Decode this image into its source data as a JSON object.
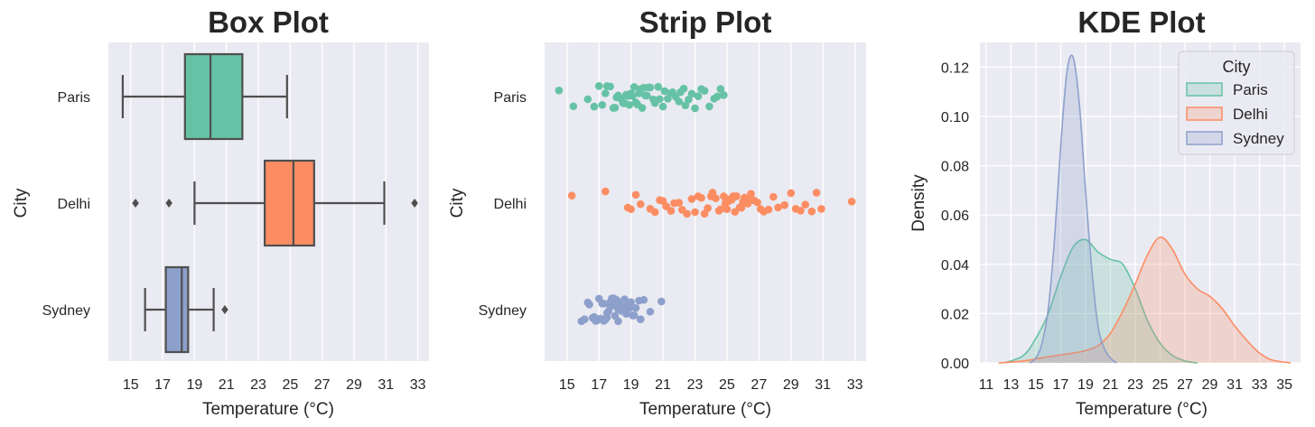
{
  "colors": {
    "panel_bg": "#eaeaf2",
    "grid": "#ffffff",
    "text": "#262626",
    "box_line": "#4f4f4f",
    "Paris": "#66c2a5",
    "Delhi": "#fc8d62",
    "Sydney": "#8da0cb"
  },
  "chart_data": [
    {
      "type": "box",
      "title": "Box Plot",
      "xlabel": "Temperature (°C)",
      "ylabel": "City",
      "xlim": [
        13.6,
        33.7
      ],
      "xticks": [
        15,
        17,
        19,
        21,
        23,
        25,
        27,
        29,
        31,
        33
      ],
      "grid": true,
      "categories": [
        "Paris",
        "Delhi",
        "Sydney"
      ],
      "series": [
        {
          "name": "Paris",
          "whisker_low": 14.5,
          "q1": 18.4,
          "median": 20.0,
          "q3": 22.0,
          "whisker_high": 24.8,
          "outliers": []
        },
        {
          "name": "Delhi",
          "whisker_low": 19.0,
          "q1": 23.4,
          "median": 25.2,
          "q3": 26.5,
          "whisker_high": 30.9,
          "outliers": [
            15.3,
            17.4,
            32.8
          ]
        },
        {
          "name": "Sydney",
          "whisker_low": 15.9,
          "q1": 17.2,
          "median": 18.2,
          "q3": 18.6,
          "whisker_high": 20.2,
          "outliers": [
            20.9
          ]
        }
      ]
    },
    {
      "type": "scatter",
      "title": "Strip Plot",
      "xlabel": "Temperature (°C)",
      "ylabel": "City",
      "xlim": [
        13.6,
        33.7
      ],
      "xticks": [
        15,
        17,
        19,
        21,
        23,
        25,
        27,
        29,
        31,
        33
      ],
      "grid": true,
      "categories": [
        "Paris",
        "Delhi",
        "Sydney"
      ],
      "series": [
        {
          "name": "Paris",
          "values": [
            14.5,
            15.4,
            16.3,
            16.7,
            17.0,
            17.2,
            17.4,
            17.5,
            17.7,
            17.9,
            18.0,
            18.1,
            18.2,
            18.3,
            18.4,
            18.5,
            18.6,
            18.7,
            18.8,
            18.9,
            19.0,
            19.1,
            19.2,
            19.3,
            19.4,
            19.5,
            19.6,
            19.7,
            19.8,
            19.9,
            20.0,
            20.1,
            20.2,
            20.4,
            20.5,
            20.7,
            20.8,
            21.0,
            21.1,
            21.3,
            21.5,
            21.6,
            21.8,
            22.0,
            22.1,
            22.3,
            22.4,
            22.6,
            22.8,
            23.0,
            23.2,
            23.4,
            23.6,
            23.9,
            24.2,
            24.4,
            24.6,
            24.8
          ]
        },
        {
          "name": "Delhi",
          "values": [
            15.3,
            17.4,
            18.8,
            19.0,
            19.3,
            19.6,
            20.2,
            20.5,
            20.8,
            21.0,
            21.2,
            21.5,
            21.7,
            22.0,
            22.2,
            22.5,
            22.8,
            23.0,
            23.2,
            23.4,
            23.6,
            23.8,
            24.0,
            24.1,
            24.3,
            24.5,
            24.6,
            24.8,
            24.9,
            25.0,
            25.1,
            25.2,
            25.3,
            25.4,
            25.5,
            25.6,
            25.8,
            25.9,
            26.0,
            26.1,
            26.3,
            26.4,
            26.5,
            26.7,
            26.9,
            27.1,
            27.3,
            27.6,
            27.9,
            28.2,
            28.6,
            29.0,
            29.3,
            29.6,
            29.9,
            30.3,
            30.6,
            30.9,
            32.8
          ]
        },
        {
          "name": "Sydney",
          "values": [
            15.9,
            16.1,
            16.3,
            16.4,
            16.6,
            16.7,
            16.8,
            16.9,
            17.0,
            17.1,
            17.2,
            17.3,
            17.3,
            17.4,
            17.5,
            17.5,
            17.6,
            17.7,
            17.7,
            17.8,
            17.9,
            17.9,
            18.0,
            18.1,
            18.1,
            18.2,
            18.2,
            18.3,
            18.4,
            18.4,
            18.5,
            18.6,
            18.6,
            18.7,
            18.8,
            18.9,
            19.0,
            19.1,
            19.2,
            19.3,
            19.5,
            19.6,
            19.8,
            20.2,
            20.9
          ]
        }
      ]
    },
    {
      "type": "area",
      "title": "KDE Plot",
      "xlabel": "Temperature (°C)",
      "ylabel": "Density",
      "xlim": [
        10.5,
        36.3
      ],
      "ylim": [
        0,
        0.13
      ],
      "xticks": [
        11,
        13,
        15,
        17,
        19,
        21,
        23,
        25,
        27,
        29,
        31,
        33,
        35
      ],
      "yticks": [
        0.0,
        0.02,
        0.04,
        0.06,
        0.08,
        0.1,
        0.12
      ],
      "ytick_labels": [
        "0.00",
        "0.02",
        "0.04",
        "0.06",
        "0.08",
        "0.10",
        "0.12"
      ],
      "grid": true,
      "legend": {
        "title": "City",
        "position": "upper-right",
        "entries": [
          "Paris",
          "Delhi",
          "Sydney"
        ]
      },
      "series": [
        {
          "name": "Paris",
          "x": [
            12.5,
            14,
            15,
            16,
            17,
            18,
            19,
            20,
            21,
            22,
            23,
            24,
            25,
            26,
            27,
            28
          ],
          "y": [
            0.0,
            0.003,
            0.01,
            0.02,
            0.035,
            0.047,
            0.05,
            0.045,
            0.042,
            0.04,
            0.03,
            0.017,
            0.008,
            0.003,
            0.0008,
            0.0
          ]
        },
        {
          "name": "Delhi",
          "x": [
            12,
            14,
            16,
            18,
            19,
            20,
            21,
            22,
            23,
            24,
            25,
            26,
            27,
            28,
            29,
            30,
            31,
            32,
            33,
            34,
            35.5
          ],
          "y": [
            0.0,
            0.0008,
            0.0025,
            0.004,
            0.005,
            0.007,
            0.012,
            0.021,
            0.032,
            0.044,
            0.051,
            0.046,
            0.036,
            0.03,
            0.027,
            0.022,
            0.015,
            0.009,
            0.004,
            0.0012,
            0.0
          ]
        },
        {
          "name": "Sydney",
          "x": [
            14.5,
            15,
            15.5,
            16,
            16.5,
            17,
            17.5,
            18,
            18.5,
            19,
            19.5,
            20,
            20.5,
            21,
            21.5
          ],
          "y": [
            0.0,
            0.002,
            0.008,
            0.022,
            0.05,
            0.088,
            0.118,
            0.124,
            0.105,
            0.07,
            0.038,
            0.015,
            0.006,
            0.002,
            0.0
          ]
        }
      ]
    }
  ]
}
